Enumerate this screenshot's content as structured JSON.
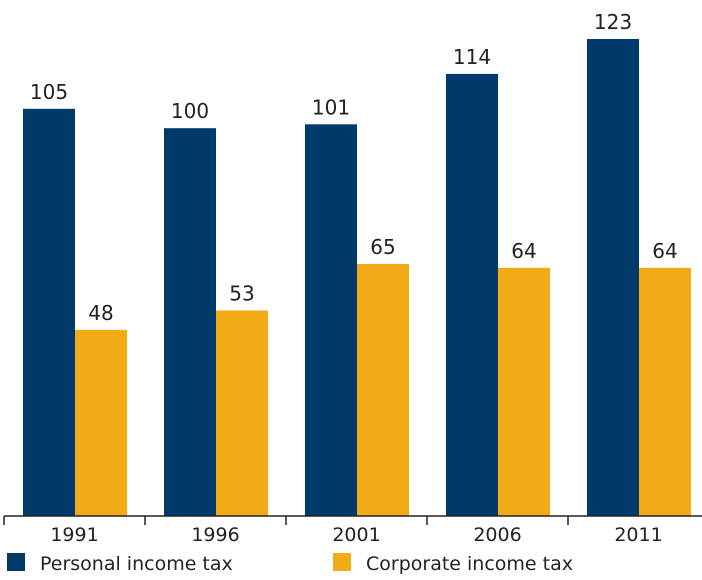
{
  "chart_data": {
    "type": "bar",
    "categories": [
      "1991",
      "1996",
      "2001",
      "2006",
      "2011"
    ],
    "series": [
      {
        "name": "Personal income tax",
        "values": [
          105,
          100,
          101,
          114,
          123
        ],
        "color": "#003a6b"
      },
      {
        "name": "Corporate income tax",
        "values": [
          48,
          53,
          65,
          64,
          64
        ],
        "color": "#f0ab16"
      }
    ],
    "ylim": [
      0,
      123
    ],
    "grid": false,
    "legend_position": "bottom",
    "data_labels": true
  }
}
